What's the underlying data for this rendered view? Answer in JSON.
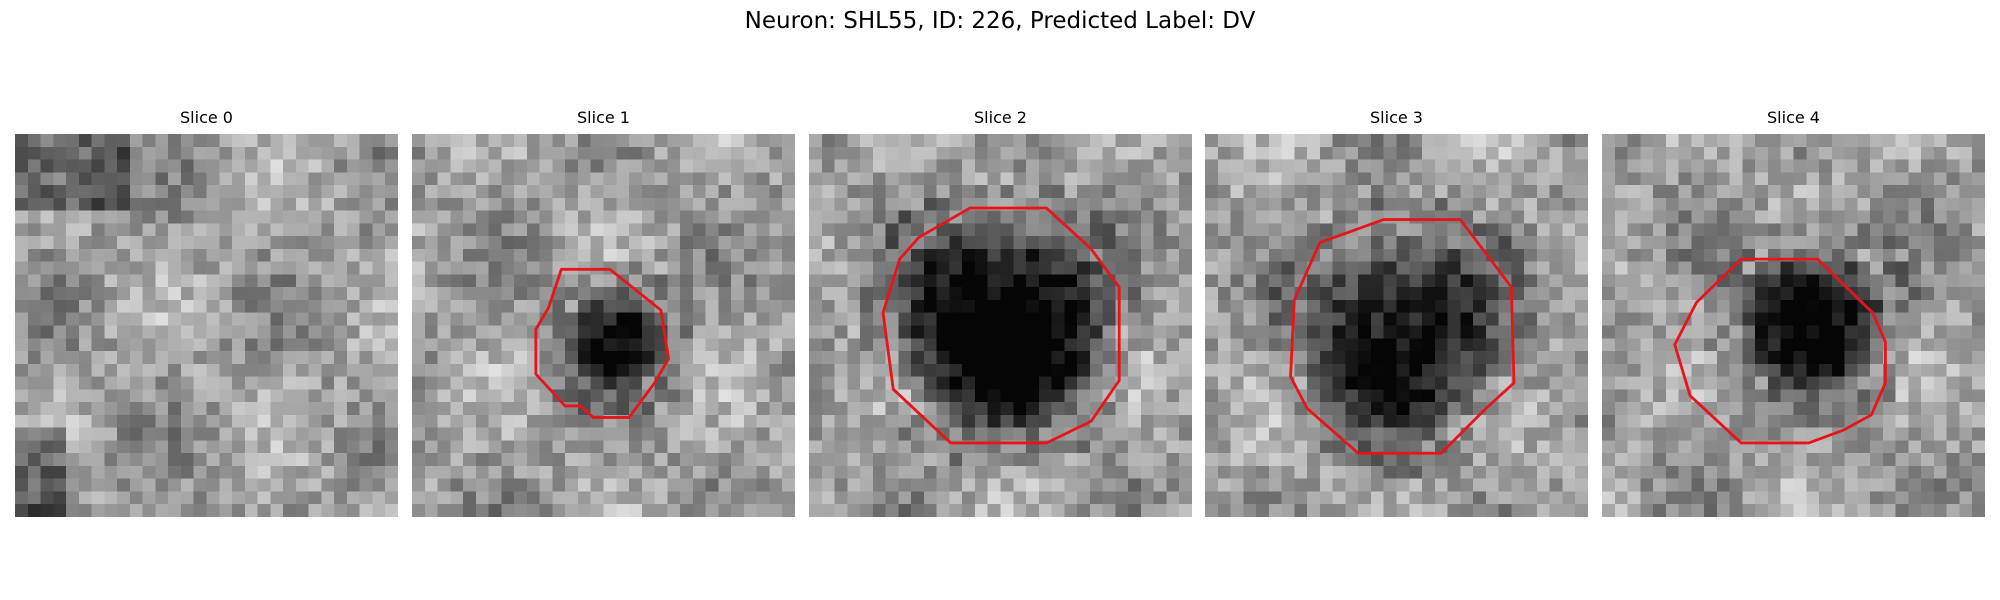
{
  "figure": {
    "title": "Neuron: SHL55, ID: 226, Predicted Label: DV",
    "panels": [
      {
        "title": "Slice 0"
      },
      {
        "title": "Slice 1"
      },
      {
        "title": "Slice 2"
      },
      {
        "title": "Slice 3"
      },
      {
        "title": "Slice 4"
      }
    ]
  }
}
